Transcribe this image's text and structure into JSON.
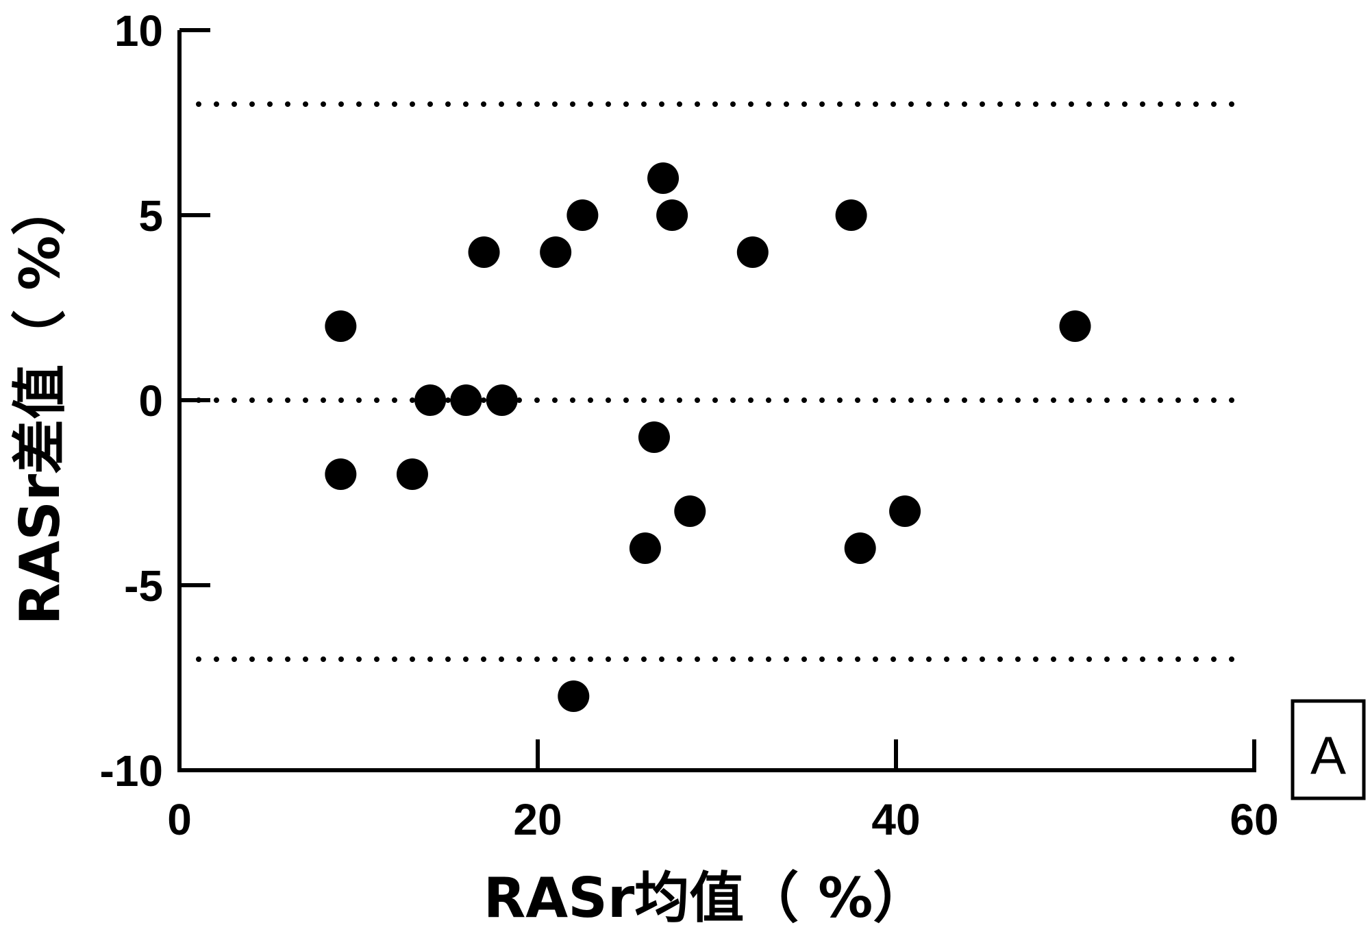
{
  "chart_data": {
    "type": "scatter",
    "xlabel": "RASr均值（ %）",
    "ylabel": "RASr差值（ %）",
    "xlim": [
      0,
      60
    ],
    "ylim": [
      -10,
      10
    ],
    "x_ticks": [
      "0",
      "20",
      "40",
      "60"
    ],
    "y_ticks": [
      "-10",
      "-5",
      "0",
      "5",
      "10"
    ],
    "panel_label": "A",
    "grid": false,
    "reference_lines": [
      8,
      0,
      -7
    ],
    "points": [
      {
        "x": 9,
        "y": 2
      },
      {
        "x": 9,
        "y": -2
      },
      {
        "x": 13,
        "y": -2
      },
      {
        "x": 14,
        "y": 0
      },
      {
        "x": 16,
        "y": 0
      },
      {
        "x": 17,
        "y": 4
      },
      {
        "x": 18,
        "y": 0
      },
      {
        "x": 21,
        "y": 4
      },
      {
        "x": 22,
        "y": -8
      },
      {
        "x": 22.5,
        "y": 5
      },
      {
        "x": 26,
        "y": -4
      },
      {
        "x": 26.5,
        "y": -1
      },
      {
        "x": 27,
        "y": 6
      },
      {
        "x": 27.5,
        "y": 5
      },
      {
        "x": 28.5,
        "y": -3
      },
      {
        "x": 32,
        "y": 4
      },
      {
        "x": 37.5,
        "y": 5
      },
      {
        "x": 38,
        "y": -4
      },
      {
        "x": 40.5,
        "y": -3
      },
      {
        "x": 50,
        "y": 2
      }
    ]
  }
}
